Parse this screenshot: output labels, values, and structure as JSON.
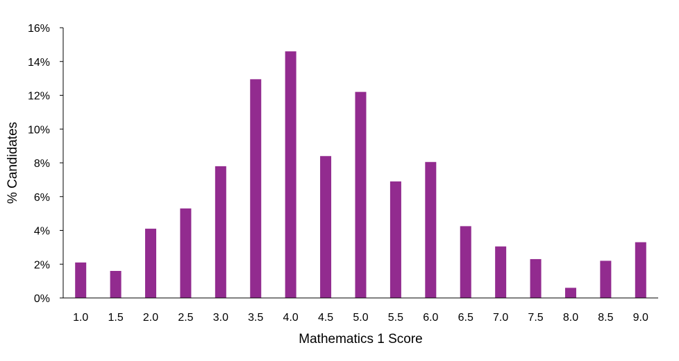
{
  "chart_data": {
    "type": "bar",
    "title": "",
    "xlabel": "Mathematics 1 Score",
    "ylabel": "% Candidates",
    "categories": [
      "1.0",
      "1.5",
      "2.0",
      "2.5",
      "3.0",
      "3.5",
      "4.0",
      "4.5",
      "5.0",
      "5.5",
      "6.0",
      "6.5",
      "7.0",
      "7.5",
      "8.0",
      "8.5",
      "9.0"
    ],
    "values": [
      2.1,
      1.6,
      4.1,
      5.3,
      7.8,
      12.95,
      14.6,
      8.4,
      12.2,
      6.9,
      8.05,
      4.25,
      3.05,
      2.3,
      0.6,
      2.2,
      3.3
    ],
    "ylim": [
      0,
      16
    ],
    "yticks": [
      0,
      2,
      4,
      6,
      8,
      10,
      12,
      14,
      16
    ],
    "ytick_labels": [
      "0%",
      "2%",
      "4%",
      "6%",
      "8%",
      "10%",
      "12%",
      "14%",
      "16%"
    ],
    "grid": false,
    "legend": "none",
    "bar_color": "#922B8F",
    "axis_color": "#000000"
  }
}
